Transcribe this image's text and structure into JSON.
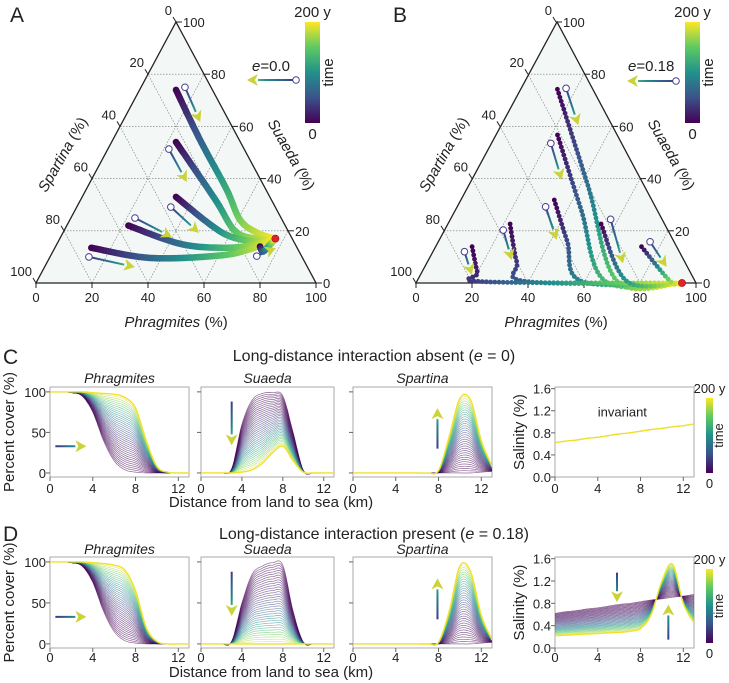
{
  "chart_data": [
    {
      "panel": "A",
      "type": "scatter",
      "subtype": "ternary",
      "letter": "A",
      "e_symbol": "e",
      "e_value": "=0.0",
      "axis_bottom": {
        "name": "Phragmites",
        "unit": " (%)"
      },
      "axis_right": {
        "name": "Suaeda",
        "unit": " (%)"
      },
      "axis_left": {
        "name": "Spartina",
        "unit": " (%)"
      },
      "ticks": [
        "0",
        "20",
        "40",
        "60",
        "80",
        "100"
      ],
      "colorbar": {
        "max_label": "200 y",
        "min_label": "0",
        "label": "time"
      },
      "point_format": "[Phragmites %, Suaeda %]",
      "equilibrium": [
        77,
        17
      ],
      "trajectories": [
        [
          [
            13,
            74
          ],
          [
            31,
            55
          ],
          [
            50,
            36
          ],
          [
            61,
            24
          ],
          [
            70,
            19
          ],
          [
            77,
            17
          ]
        ],
        [
          [
            23,
            54
          ],
          [
            48,
            32
          ],
          [
            61,
            20
          ],
          [
            70,
            17
          ],
          [
            77,
            17
          ]
        ],
        [
          [
            33.5,
            33
          ],
          [
            50,
            23
          ],
          [
            60,
            18
          ],
          [
            70,
            16
          ],
          [
            77,
            17
          ]
        ],
        [
          [
            22,
            22
          ],
          [
            44,
            15
          ],
          [
            60,
            13.5
          ],
          [
            70,
            14.5
          ],
          [
            77,
            17
          ]
        ],
        [
          [
            13,
            13.5
          ],
          [
            36,
            9.6
          ],
          [
            60,
            10.5
          ],
          [
            70,
            13
          ],
          [
            77,
            17
          ]
        ],
        [
          [
            73,
            14
          ],
          [
            75,
            12
          ],
          [
            76,
            14
          ],
          [
            77,
            17
          ]
        ]
      ],
      "initial_guides": [
        {
          "from": [
            15.7,
            75
          ],
          "to": [
            27.8,
            61.7
          ]
        },
        {
          "from": [
            21.8,
            51.3
          ],
          "to": [
            34.5,
            38.7
          ]
        },
        {
          "from": [
            33.6,
            29.1
          ],
          "to": [
            48.6,
            19.2
          ]
        },
        {
          "from": [
            22.9,
            24.9
          ],
          "to": [
            39.8,
            17.6
          ]
        },
        {
          "from": [
            13.9,
            10
          ],
          "to": [
            32.3,
            6.1
          ]
        },
        {
          "from": [
            73.7,
            10.3
          ],
          "to": [
            79,
            13.4
          ]
        }
      ]
    },
    {
      "panel": "B",
      "type": "scatter",
      "subtype": "ternary",
      "letter": "B",
      "e_symbol": "e",
      "e_value": "=0.18",
      "axis_bottom": {
        "name": "Phragmites",
        "unit": " (%)"
      },
      "axis_right": {
        "name": "Suaeda",
        "unit": " (%)"
      },
      "axis_left": {
        "name": "Spartina",
        "unit": " (%)"
      },
      "ticks": [
        "0",
        "20",
        "40",
        "60",
        "80",
        "100"
      ],
      "colorbar": {
        "max_label": "200 y",
        "min_label": "0",
        "label": "time"
      },
      "point_format": "[Phragmites %, Suaeda %]",
      "equilibrium": [
        95,
        0
      ],
      "trajectories": [
        [
          [
            13.4,
            74.2
          ],
          [
            43,
            37
          ],
          [
            71.7,
            0.5
          ],
          [
            95,
            0
          ]
        ],
        [
          [
            22.2,
            56.7
          ],
          [
            45,
            28
          ],
          [
            67.5,
            0.5
          ],
          [
            95,
            0
          ]
        ],
        [
          [
            33.5,
            31.8
          ],
          [
            46,
            16
          ],
          [
            59.2,
            0.5
          ],
          [
            95,
            0
          ]
        ],
        [
          [
            22.3,
            22.6
          ],
          [
            32,
            8
          ],
          [
            39.5,
            0.5
          ],
          [
            95,
            0
          ]
        ],
        [
          [
            13.1,
            13.9
          ],
          [
            20,
            4
          ],
          [
            24,
            0.5
          ],
          [
            95,
            0
          ]
        ],
        [
          [
            54.8,
            22.6
          ],
          [
            75.2,
            0.5
          ],
          [
            95,
            0
          ]
        ],
        [
          [
            73.6,
            13.9
          ],
          [
            90.7,
            0.5
          ],
          [
            95,
            0
          ]
        ]
      ],
      "initial_guides": [
        {
          "from": [
            16.3,
            74.6
          ],
          "to": [
            27.7,
            60.5
          ]
        },
        {
          "from": [
            21.4,
            53.5
          ],
          "to": [
            32.3,
            39.5
          ]
        },
        {
          "from": [
            31.7,
            29.2
          ],
          "to": [
            42,
            16.5
          ]
        },
        {
          "from": [
            21,
            20.3
          ],
          "to": [
            29.8,
            8.8
          ]
        },
        {
          "from": [
            11.3,
            12
          ],
          "to": [
            18.4,
            3.1
          ]
        },
        {
          "from": [
            57.3,
            24.4
          ],
          "to": [
            70.2,
            7.5
          ]
        },
        {
          "from": [
            75.7,
            15.8
          ],
          "to": [
            86.4,
            6.2
          ]
        }
      ]
    },
    {
      "panel": "C",
      "type": "line",
      "letter": "C",
      "title": {
        "pre": "Long-distance interaction absent (",
        "var": "e",
        "post": " = 0)"
      },
      "x": [
        0,
        1,
        2,
        3,
        4,
        5,
        6,
        7,
        8,
        9,
        10,
        11,
        12,
        13
      ],
      "xlim": [
        0,
        13
      ],
      "xticks": [
        "0",
        "4",
        "8",
        "12"
      ],
      "xlabel": "Distance from land to sea (km)",
      "cover_ylabel": "Percent cover (%)",
      "cover_yticks": [
        "0",
        "50",
        "100"
      ],
      "cover_ylim": [
        -5,
        106
      ],
      "species": [
        {
          "name": "Phragmites",
          "initial": [
            100,
            100,
            99,
            95,
            75,
            40,
            15,
            4,
            1,
            0,
            0,
            0,
            0,
            0
          ],
          "final": [
            100,
            100,
            100,
            100,
            99,
            98,
            97,
            93,
            80,
            40,
            8,
            1,
            0,
            0
          ]
        },
        {
          "name": "Suaeda",
          "initial": [
            0,
            0,
            0,
            5,
            60,
            90,
            98,
            99,
            95,
            50,
            3,
            0,
            0,
            0
          ],
          "final": [
            0,
            0,
            0,
            0,
            1,
            4,
            12,
            25,
            33,
            15,
            1,
            0,
            0,
            0
          ]
        },
        {
          "name": "Spartina",
          "initial": [
            0,
            0,
            0,
            0,
            0,
            0,
            0,
            0,
            0,
            0,
            0,
            0,
            1,
            2
          ],
          "final": [
            0,
            0,
            0,
            0,
            0,
            0,
            0,
            0,
            3,
            45,
            92,
            90,
            40,
            8
          ]
        }
      ],
      "salinity": {
        "ylabel": "Salinity (%)",
        "yticks": [
          "0.0",
          "0.4",
          "0.8",
          "1.2",
          "1.6"
        ],
        "ylim": [
          0,
          1.63
        ],
        "initial": [
          0.62,
          0.65,
          0.67,
          0.7,
          0.72,
          0.75,
          0.78,
          0.8,
          0.83,
          0.86,
          0.88,
          0.91,
          0.93,
          0.96
        ],
        "final": [
          0.62,
          0.65,
          0.67,
          0.7,
          0.72,
          0.75,
          0.78,
          0.8,
          0.83,
          0.86,
          0.88,
          0.91,
          0.93,
          0.96
        ],
        "annotation": "invariant"
      },
      "colorbar": {
        "max_label": "200 y",
        "min_label": "0",
        "label": "time"
      }
    },
    {
      "panel": "D",
      "type": "line",
      "letter": "D",
      "title": {
        "pre": "Long-distance interaction present (",
        "var": "e",
        "post": " = 0.18)"
      },
      "x": [
        0,
        1,
        2,
        3,
        4,
        5,
        6,
        7,
        8,
        9,
        10,
        11,
        12,
        13
      ],
      "xlim": [
        0,
        13
      ],
      "xticks": [
        "0",
        "4",
        "8",
        "12"
      ],
      "xlabel": "Distance from land to sea (km)",
      "cover_ylabel": "Percent cover (%)",
      "cover_yticks": [
        "0",
        "50",
        "100"
      ],
      "cover_ylim": [
        -5,
        106
      ],
      "species": [
        {
          "name": "Phragmites",
          "initial": [
            100,
            100,
            99,
            95,
            75,
            40,
            15,
            4,
            1,
            0,
            0,
            0,
            0,
            0
          ],
          "final": [
            100,
            100,
            100,
            100,
            99,
            98,
            96,
            90,
            65,
            20,
            3,
            0,
            0,
            0
          ]
        },
        {
          "name": "Suaeda",
          "initial": [
            0,
            0,
            0,
            3,
            50,
            85,
            95,
            99,
            96,
            40,
            2,
            0,
            0,
            0
          ],
          "final": [
            0,
            0,
            0,
            0,
            0,
            0,
            0,
            0,
            0,
            0,
            0,
            0,
            0,
            0
          ]
        },
        {
          "name": "Spartina",
          "initial": [
            0,
            0,
            0,
            0,
            0,
            0,
            0,
            0,
            0,
            0,
            0,
            0,
            1,
            2
          ],
          "final": [
            0,
            0,
            0,
            0,
            0,
            0,
            0,
            0,
            2,
            40,
            95,
            88,
            35,
            5
          ]
        }
      ],
      "salinity": {
        "ylabel": "Salinity (%)",
        "yticks": [
          "0.0",
          "0.4",
          "0.8",
          "1.2",
          "1.6"
        ],
        "ylim": [
          0,
          1.63
        ],
        "initial": [
          0.62,
          0.65,
          0.67,
          0.7,
          0.72,
          0.75,
          0.78,
          0.8,
          0.83,
          0.86,
          0.88,
          0.91,
          0.93,
          0.96
        ],
        "final": [
          0.22,
          0.23,
          0.24,
          0.25,
          0.26,
          0.27,
          0.28,
          0.3,
          0.35,
          0.6,
          1.2,
          1.5,
          0.8,
          0.45
        ]
      },
      "colorbar": {
        "max_label": "200 y",
        "min_label": "0",
        "label": "time"
      }
    }
  ]
}
